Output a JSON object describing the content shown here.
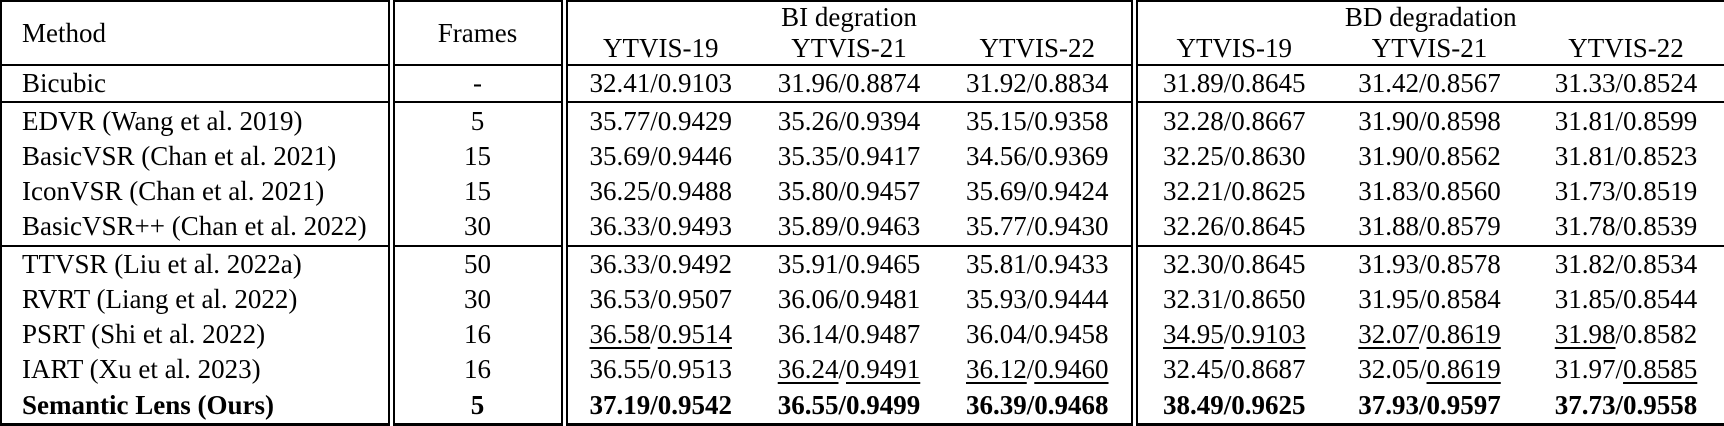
{
  "table": {
    "value_separator": "/",
    "header": {
      "method_label": "Method",
      "frames_label": "Frames",
      "group_bi_label": "BI degration",
      "group_bd_label": "BD degradation",
      "sub_columns_bi": [
        "YTVIS-19",
        "YTVIS-21",
        "YTVIS-22"
      ],
      "sub_columns_bd": [
        "YTVIS-19",
        "YTVIS-21",
        "YTVIS-22"
      ]
    },
    "groups": [
      {
        "rows": [
          {
            "method": "Bicubic",
            "frames": "-",
            "bold": false,
            "cells": [
              {
                "psnr": "32.41",
                "ssim": "0.9103",
                "underline": "none"
              },
              {
                "psnr": "31.96",
                "ssim": "0.8874",
                "underline": "none"
              },
              {
                "psnr": "31.92",
                "ssim": "0.8834",
                "underline": "none"
              },
              {
                "psnr": "31.89",
                "ssim": "0.8645",
                "underline": "none"
              },
              {
                "psnr": "31.42",
                "ssim": "0.8567",
                "underline": "none"
              },
              {
                "psnr": "31.33",
                "ssim": "0.8524",
                "underline": "none"
              }
            ]
          }
        ]
      },
      {
        "rows": [
          {
            "method": "EDVR (Wang et al. 2019)",
            "frames": "5",
            "bold": false,
            "cells": [
              {
                "psnr": "35.77",
                "ssim": "0.9429",
                "underline": "none"
              },
              {
                "psnr": "35.26",
                "ssim": "0.9394",
                "underline": "none"
              },
              {
                "psnr": "35.15",
                "ssim": "0.9358",
                "underline": "none"
              },
              {
                "psnr": "32.28",
                "ssim": "0.8667",
                "underline": "none"
              },
              {
                "psnr": "31.90",
                "ssim": "0.8598",
                "underline": "none"
              },
              {
                "psnr": "31.81",
                "ssim": "0.8599",
                "underline": "none"
              }
            ]
          },
          {
            "method": "BasicVSR (Chan et al. 2021)",
            "frames": "15",
            "bold": false,
            "cells": [
              {
                "psnr": "35.69",
                "ssim": "0.9446",
                "underline": "none"
              },
              {
                "psnr": "35.35",
                "ssim": "0.9417",
                "underline": "none"
              },
              {
                "psnr": "34.56",
                "ssim": "0.9369",
                "underline": "none"
              },
              {
                "psnr": "32.25",
                "ssim": "0.8630",
                "underline": "none"
              },
              {
                "psnr": "31.90",
                "ssim": "0.8562",
                "underline": "none"
              },
              {
                "psnr": "31.81",
                "ssim": "0.8523",
                "underline": "none"
              }
            ]
          },
          {
            "method": "IconVSR (Chan et al. 2021)",
            "frames": "15",
            "bold": false,
            "cells": [
              {
                "psnr": "36.25",
                "ssim": "0.9488",
                "underline": "none"
              },
              {
                "psnr": "35.80",
                "ssim": "0.9457",
                "underline": "none"
              },
              {
                "psnr": "35.69",
                "ssim": "0.9424",
                "underline": "none"
              },
              {
                "psnr": "32.21",
                "ssim": "0.8625",
                "underline": "none"
              },
              {
                "psnr": "31.83",
                "ssim": "0.8560",
                "underline": "none"
              },
              {
                "psnr": "31.73",
                "ssim": "0.8519",
                "underline": "none"
              }
            ]
          },
          {
            "method": "BasicVSR++ (Chan et al. 2022)",
            "frames": "30",
            "bold": false,
            "cells": [
              {
                "psnr": "36.33",
                "ssim": "0.9493",
                "underline": "none"
              },
              {
                "psnr": "35.89",
                "ssim": "0.9463",
                "underline": "none"
              },
              {
                "psnr": "35.77",
                "ssim": "0.9430",
                "underline": "none"
              },
              {
                "psnr": "32.26",
                "ssim": "0.8645",
                "underline": "none"
              },
              {
                "psnr": "31.88",
                "ssim": "0.8579",
                "underline": "none"
              },
              {
                "psnr": "31.78",
                "ssim": "0.8539",
                "underline": "none"
              }
            ]
          }
        ]
      },
      {
        "rows": [
          {
            "method": "TTVSR (Liu et al. 2022a)",
            "frames": "50",
            "bold": false,
            "cells": [
              {
                "psnr": "36.33",
                "ssim": "0.9492",
                "underline": "none"
              },
              {
                "psnr": "35.91",
                "ssim": "0.9465",
                "underline": "none"
              },
              {
                "psnr": "35.81",
                "ssim": "0.9433",
                "underline": "none"
              },
              {
                "psnr": "32.30",
                "ssim": "0.8645",
                "underline": "none"
              },
              {
                "psnr": "31.93",
                "ssim": "0.8578",
                "underline": "none"
              },
              {
                "psnr": "31.82",
                "ssim": "0.8534",
                "underline": "none"
              }
            ]
          },
          {
            "method": "RVRT (Liang et al. 2022)",
            "frames": "30",
            "bold": false,
            "cells": [
              {
                "psnr": "36.53",
                "ssim": "0.9507",
                "underline": "none"
              },
              {
                "psnr": "36.06",
                "ssim": "0.9481",
                "underline": "none"
              },
              {
                "psnr": "35.93",
                "ssim": "0.9444",
                "underline": "none"
              },
              {
                "psnr": "32.31",
                "ssim": "0.8650",
                "underline": "none"
              },
              {
                "psnr": "31.95",
                "ssim": "0.8584",
                "underline": "none"
              },
              {
                "psnr": "31.85",
                "ssim": "0.8544",
                "underline": "none"
              }
            ]
          },
          {
            "method": "PSRT (Shi et al. 2022)",
            "frames": "16",
            "bold": false,
            "cells": [
              {
                "psnr": "36.58",
                "ssim": "0.9514",
                "underline": "both"
              },
              {
                "psnr": "36.14",
                "ssim": "0.9487",
                "underline": "none"
              },
              {
                "psnr": "36.04",
                "ssim": "0.9458",
                "underline": "none"
              },
              {
                "psnr": "34.95",
                "ssim": "0.9103",
                "underline": "both"
              },
              {
                "psnr": "32.07",
                "ssim": "0.8619",
                "underline": "both"
              },
              {
                "psnr": "31.98",
                "ssim": "0.8582",
                "underline": "psnr"
              }
            ]
          },
          {
            "method": "IART (Xu et al. 2023)",
            "frames": "16",
            "bold": false,
            "cells": [
              {
                "psnr": "36.55",
                "ssim": "0.9513",
                "underline": "none"
              },
              {
                "psnr": "36.24",
                "ssim": "0.9491",
                "underline": "both"
              },
              {
                "psnr": "36.12",
                "ssim": "0.9460",
                "underline": "both"
              },
              {
                "psnr": "32.45",
                "ssim": "0.8687",
                "underline": "none"
              },
              {
                "psnr": "32.05",
                "ssim": "0.8619",
                "underline": "ssim"
              },
              {
                "psnr": "31.97",
                "ssim": "0.8585",
                "underline": "ssim"
              }
            ]
          },
          {
            "method": "Semantic Lens (Ours)",
            "frames": "5",
            "bold": true,
            "cells": [
              {
                "psnr": "37.19",
                "ssim": "0.9542",
                "underline": "none"
              },
              {
                "psnr": "36.55",
                "ssim": "0.9499",
                "underline": "none"
              },
              {
                "psnr": "36.39",
                "ssim": "0.9468",
                "underline": "none"
              },
              {
                "psnr": "38.49",
                "ssim": "0.9625",
                "underline": "none"
              },
              {
                "psnr": "37.93",
                "ssim": "0.9597",
                "underline": "none"
              },
              {
                "psnr": "37.73",
                "ssim": "0.9558",
                "underline": "none"
              }
            ]
          }
        ]
      }
    ]
  }
}
